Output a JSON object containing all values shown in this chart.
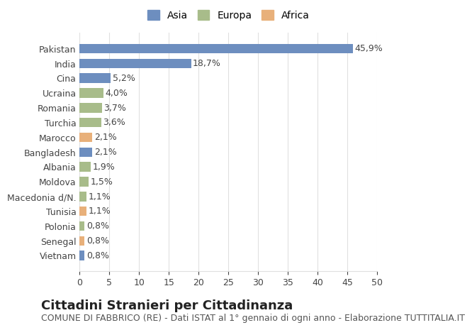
{
  "countries": [
    "Pakistan",
    "India",
    "Cina",
    "Ucraina",
    "Romania",
    "Turchia",
    "Marocco",
    "Bangladesh",
    "Albania",
    "Moldova",
    "Macedonia d/N.",
    "Tunisia",
    "Polonia",
    "Senegal",
    "Vietnam"
  ],
  "values": [
    45.9,
    18.7,
    5.2,
    4.0,
    3.7,
    3.6,
    2.1,
    2.1,
    1.9,
    1.5,
    1.1,
    1.1,
    0.8,
    0.8,
    0.8
  ],
  "labels": [
    "45,9%",
    "18,7%",
    "5,2%",
    "4,0%",
    "3,7%",
    "3,6%",
    "2,1%",
    "2,1%",
    "1,9%",
    "1,5%",
    "1,1%",
    "1,1%",
    "0,8%",
    "0,8%",
    "0,8%"
  ],
  "continents": [
    "Asia",
    "Asia",
    "Asia",
    "Europa",
    "Europa",
    "Europa",
    "Africa",
    "Asia",
    "Europa",
    "Europa",
    "Europa",
    "Africa",
    "Europa",
    "Africa",
    "Asia"
  ],
  "colors": {
    "Asia": "#6d8ebf",
    "Europa": "#a8bc8a",
    "Africa": "#e8b07a"
  },
  "legend_order": [
    "Asia",
    "Europa",
    "Africa"
  ],
  "legend_colors": [
    "#6d8ebf",
    "#a8bc8a",
    "#e8b07a"
  ],
  "xlim": [
    0,
    50
  ],
  "xticks": [
    0,
    5,
    10,
    15,
    20,
    25,
    30,
    35,
    40,
    45,
    50
  ],
  "title": "Cittadini Stranieri per Cittadinanza",
  "subtitle": "COMUNE DI FABBRICO (RE) - Dati ISTAT al 1° gennaio di ogni anno - Elaborazione TUTTITALIA.IT",
  "background_color": "#ffffff",
  "grid_color": "#e0e0e0",
  "bar_height": 0.65,
  "title_fontsize": 13,
  "subtitle_fontsize": 9,
  "label_fontsize": 9,
  "tick_fontsize": 9,
  "legend_fontsize": 10
}
